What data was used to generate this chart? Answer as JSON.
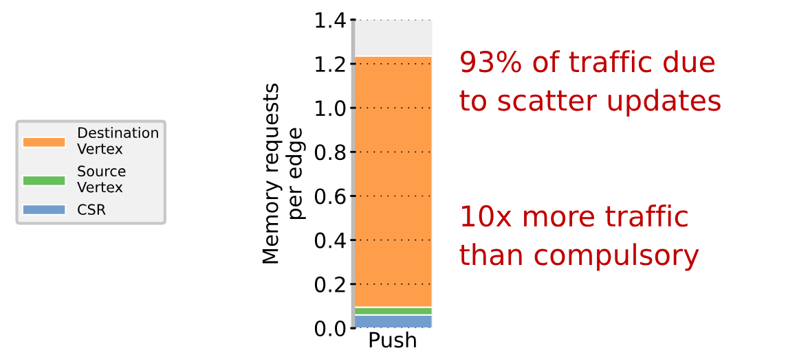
{
  "chart_data": {
    "type": "bar",
    "stacked": true,
    "ylabel": "Memory requests\nper edge",
    "categories": [
      "Push"
    ],
    "series": [
      {
        "name": "CSR",
        "color": "#729ece",
        "values": [
          0.06
        ]
      },
      {
        "name": "Source\nVertex",
        "color": "#67bf5c",
        "values": [
          0.035
        ]
      },
      {
        "name": "Destination\nVertex",
        "color": "#ff9e4a",
        "values": [
          1.14
        ]
      }
    ],
    "ylim": [
      0,
      1.4
    ],
    "yticks": [
      {
        "value": 0,
        "label": "0.0"
      },
      0.2,
      0.4,
      0.6,
      0.8,
      {
        "value": 1,
        "label": "1.0"
      },
      1.2,
      1.4
    ],
    "grid": "y",
    "legend": "left",
    "annotations": [
      "93% of traffic due\nto scatter updates",
      "10x more traffic\nthan compulsory"
    ]
  }
}
